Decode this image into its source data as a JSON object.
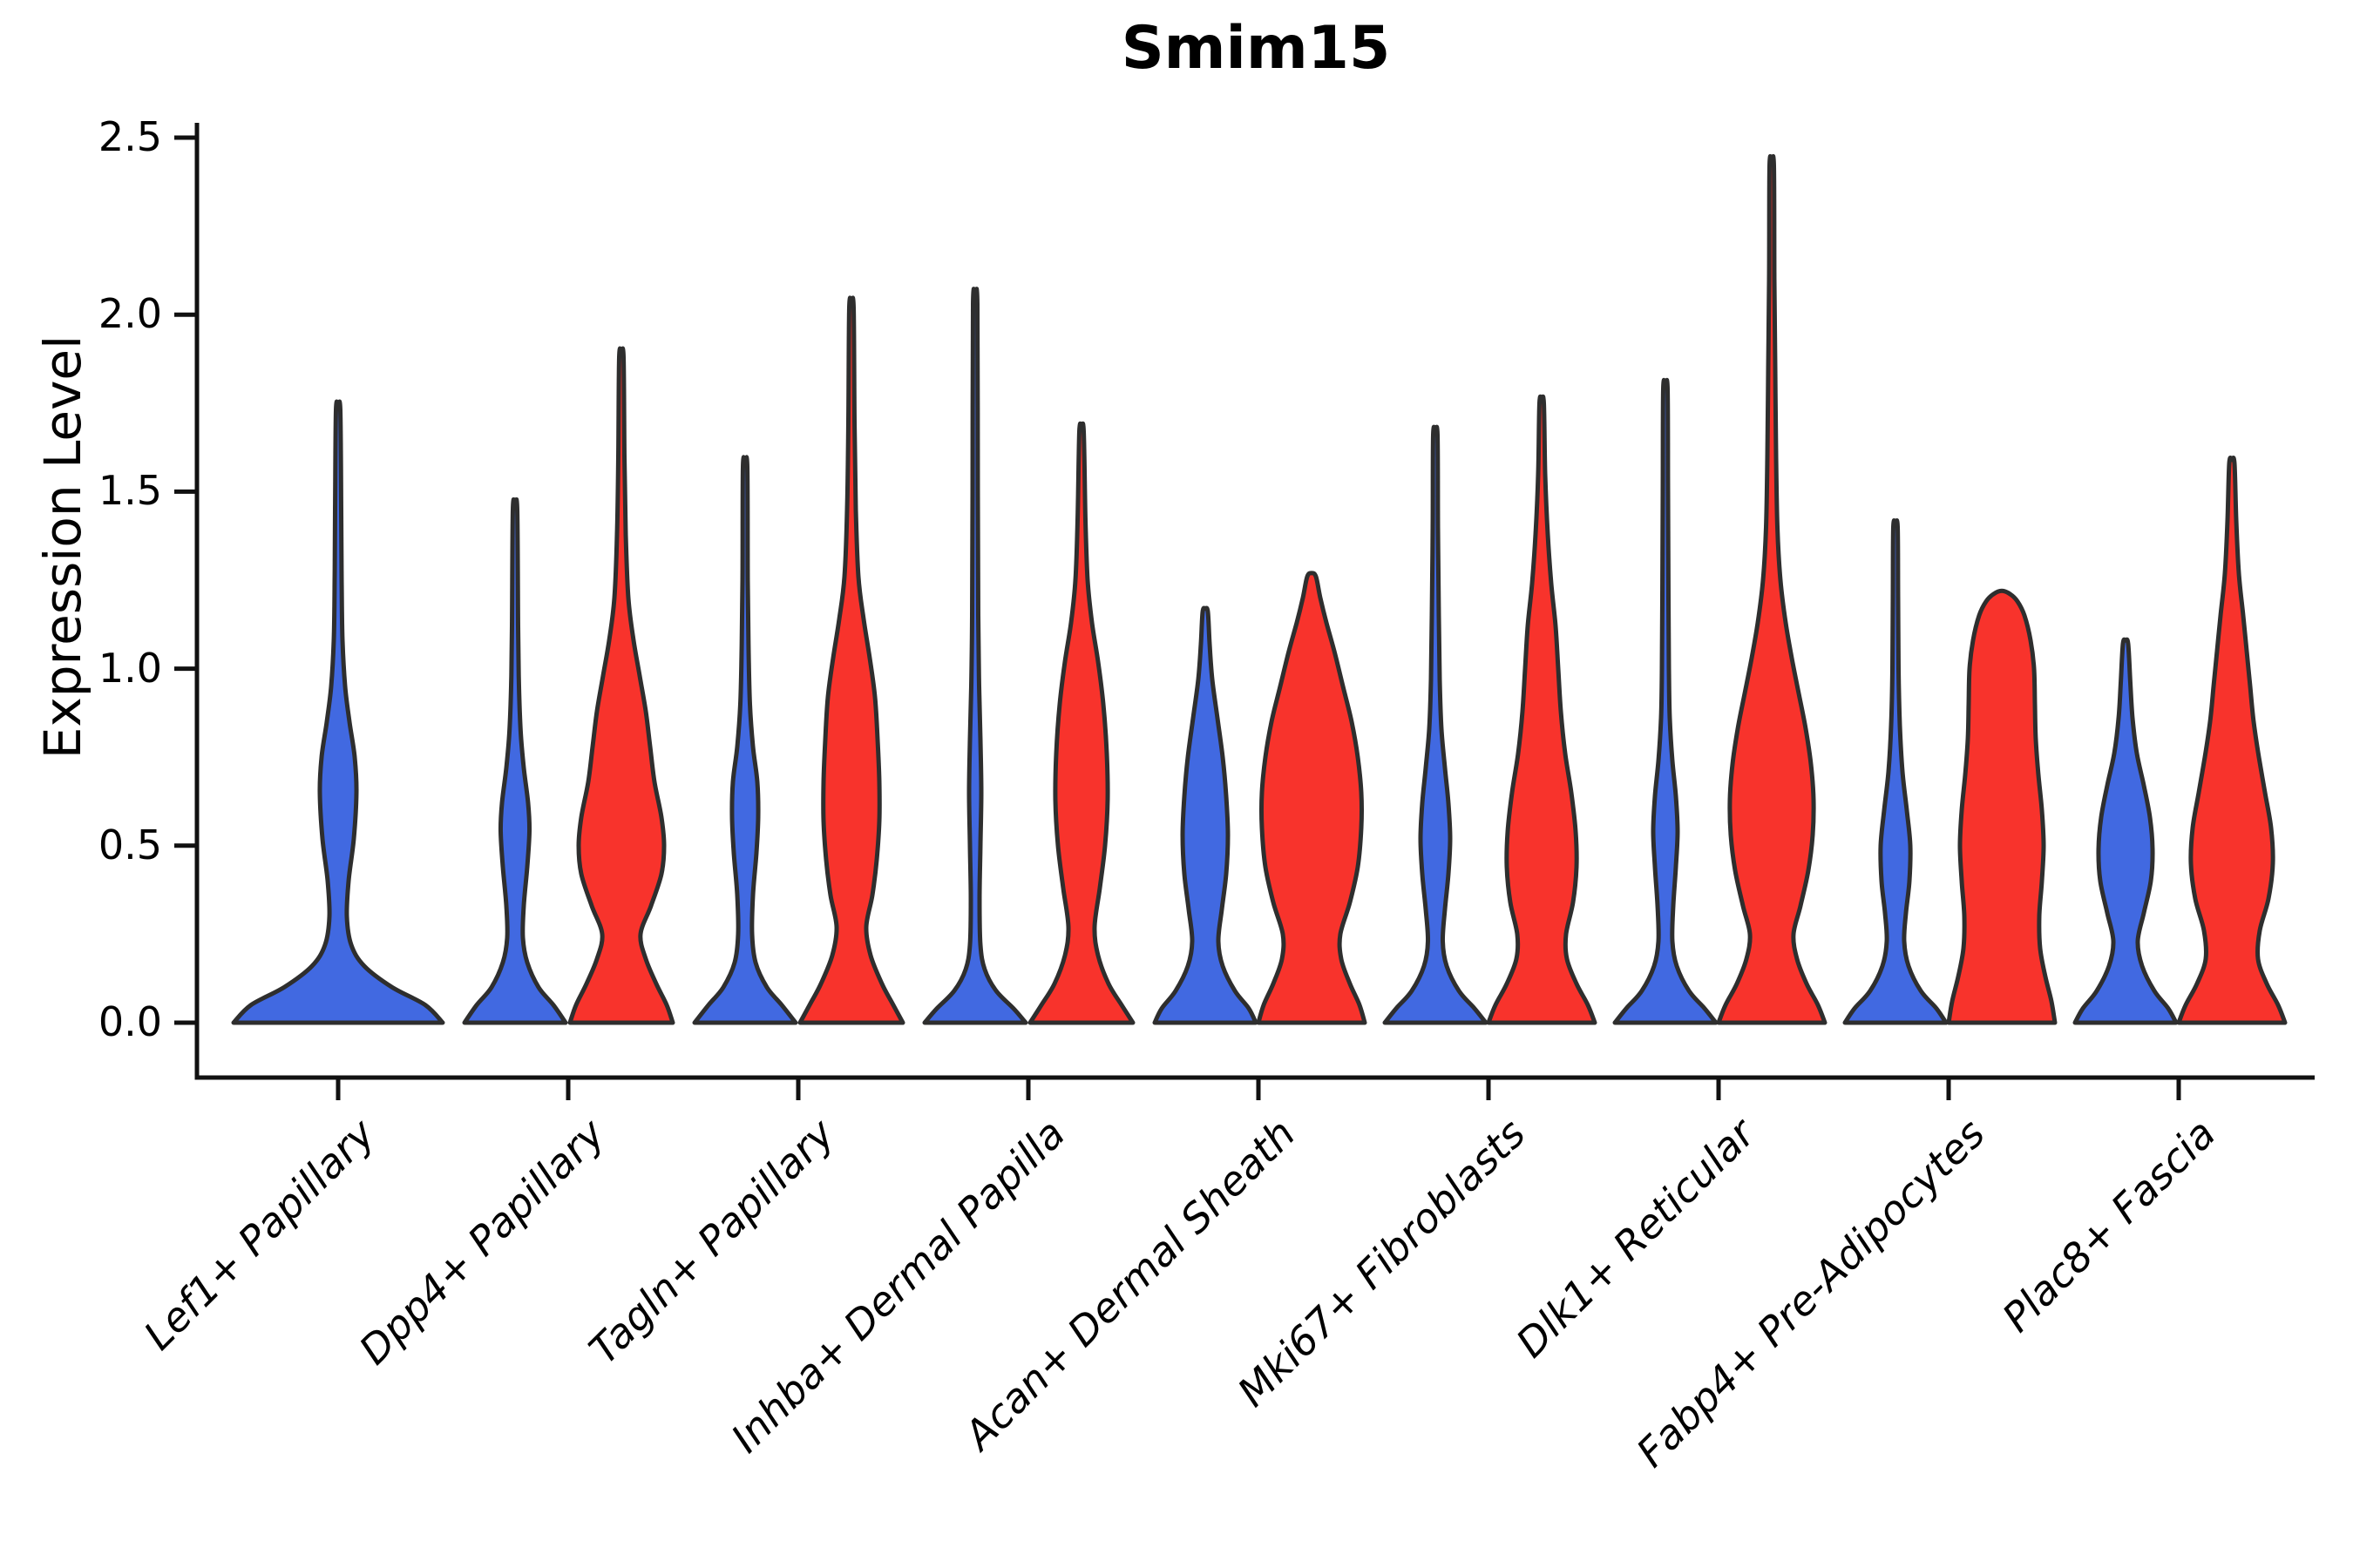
{
  "chart_data": {
    "type": "violin",
    "title": "Smim15",
    "ylabel": "Expression Level",
    "xlabel": "",
    "ylim": [
      0,
      2.5
    ],
    "grid": false,
    "legend": "none",
    "yticks": [
      0.0,
      0.5,
      1.0,
      1.5,
      2.0,
      2.5
    ],
    "ytick_labels": [
      "0.0",
      "0.5",
      "1.0",
      "1.5",
      "2.0",
      "2.5"
    ],
    "categories": [
      "Lef1+ Papillary",
      "Dpp4+ Papillary",
      "Tagln+ Papillary",
      "Inhba+ Dermal Papilla",
      "Acan+ Dermal Sheath",
      "Mki67+ Fibroblasts",
      "Dlk1+ Reticular",
      "Fabp4+ Pre-Adipocytes",
      "Plac8+ Fascia"
    ],
    "series": [
      {
        "id": "blue",
        "color": "#4169E1",
        "max_expression": [
          1.73,
          1.45,
          1.57,
          2.03,
          1.16,
          1.66,
          1.79,
          1.4,
          1.07
        ]
      },
      {
        "id": "red",
        "color": "#F8332C",
        "max_expression": [
          null,
          1.88,
          2.02,
          1.67,
          1.26,
          1.75,
          2.42,
          1.21,
          1.58
        ]
      }
    ],
    "violin_outline_color": "#2e2e2e",
    "axis_color": "#111111",
    "violins": [
      {
        "category_index": 0,
        "side": "blue",
        "dx": 0,
        "profile": [
          [
            0,
            120
          ],
          [
            0.05,
            100
          ],
          [
            0.1,
            62
          ],
          [
            0.16,
            30
          ],
          [
            0.22,
            15
          ],
          [
            0.3,
            10
          ],
          [
            0.4,
            12
          ],
          [
            0.52,
            18
          ],
          [
            0.65,
            21
          ],
          [
            0.75,
            19
          ],
          [
            0.85,
            13
          ],
          [
            0.95,
            8
          ],
          [
            1.08,
            5
          ],
          [
            1.25,
            4
          ],
          [
            1.45,
            3.5
          ],
          [
            1.73,
            2.5
          ]
        ]
      },
      {
        "category_index": 1,
        "side": "blue",
        "dx": -61,
        "profile": [
          [
            0,
            58
          ],
          [
            0.05,
            44
          ],
          [
            0.1,
            27
          ],
          [
            0.17,
            14
          ],
          [
            0.24,
            9
          ],
          [
            0.33,
            10
          ],
          [
            0.44,
            14
          ],
          [
            0.54,
            16.5
          ],
          [
            0.62,
            15
          ],
          [
            0.72,
            10
          ],
          [
            0.82,
            6.5
          ],
          [
            0.95,
            4.5
          ],
          [
            1.12,
            3.5
          ],
          [
            1.45,
            2.5
          ]
        ]
      },
      {
        "category_index": 1,
        "side": "red",
        "dx": 61,
        "profile": [
          [
            0,
            59
          ],
          [
            0.05,
            52
          ],
          [
            0.11,
            40
          ],
          [
            0.18,
            28
          ],
          [
            0.25,
            22
          ],
          [
            0.33,
            34
          ],
          [
            0.42,
            46
          ],
          [
            0.5,
            49
          ],
          [
            0.58,
            46
          ],
          [
            0.68,
            38
          ],
          [
            0.78,
            33
          ],
          [
            0.88,
            28
          ],
          [
            0.98,
            21
          ],
          [
            1.08,
            14
          ],
          [
            1.2,
            8
          ],
          [
            1.38,
            5
          ],
          [
            1.6,
            3.5
          ],
          [
            1.88,
            2.5
          ]
        ]
      },
      {
        "category_index": 2,
        "side": "blue",
        "dx": -61,
        "profile": [
          [
            0,
            58
          ],
          [
            0.05,
            42
          ],
          [
            0.1,
            25
          ],
          [
            0.17,
            12
          ],
          [
            0.25,
            8
          ],
          [
            0.36,
            9
          ],
          [
            0.48,
            13
          ],
          [
            0.58,
            15
          ],
          [
            0.68,
            14
          ],
          [
            0.78,
            9
          ],
          [
            0.9,
            5.5
          ],
          [
            1.05,
            4
          ],
          [
            1.25,
            3
          ],
          [
            1.57,
            2.5
          ]
        ]
      },
      {
        "category_index": 2,
        "side": "red",
        "dx": 61,
        "profile": [
          [
            0,
            59
          ],
          [
            0.05,
            48
          ],
          [
            0.11,
            35
          ],
          [
            0.19,
            22
          ],
          [
            0.27,
            17
          ],
          [
            0.36,
            24
          ],
          [
            0.46,
            29
          ],
          [
            0.57,
            32
          ],
          [
            0.68,
            32
          ],
          [
            0.8,
            30
          ],
          [
            0.92,
            27
          ],
          [
            1.03,
            21
          ],
          [
            1.14,
            14
          ],
          [
            1.26,
            8
          ],
          [
            1.45,
            5
          ],
          [
            1.7,
            3.5
          ],
          [
            2.02,
            2.5
          ]
        ]
      },
      {
        "category_index": 3,
        "side": "blue",
        "dx": -61,
        "profile": [
          [
            0,
            58
          ],
          [
            0.04,
            44
          ],
          [
            0.09,
            24
          ],
          [
            0.15,
            11
          ],
          [
            0.22,
            6
          ],
          [
            0.35,
            5
          ],
          [
            0.5,
            6
          ],
          [
            0.65,
            7
          ],
          [
            0.8,
            6
          ],
          [
            0.95,
            4.5
          ],
          [
            1.15,
            3.5
          ],
          [
            1.5,
            3
          ],
          [
            2.03,
            2.5
          ]
        ]
      },
      {
        "category_index": 3,
        "side": "red",
        "dx": 61,
        "profile": [
          [
            0,
            59
          ],
          [
            0.05,
            46
          ],
          [
            0.11,
            31
          ],
          [
            0.19,
            19
          ],
          [
            0.27,
            15
          ],
          [
            0.38,
            21
          ],
          [
            0.5,
            27
          ],
          [
            0.63,
            30
          ],
          [
            0.76,
            29
          ],
          [
            0.9,
            25
          ],
          [
            1.02,
            19
          ],
          [
            1.13,
            12
          ],
          [
            1.25,
            7
          ],
          [
            1.42,
            4.5
          ],
          [
            1.67,
            2.5
          ]
        ]
      },
      {
        "category_index": 4,
        "side": "blue",
        "dx": -61,
        "profile": [
          [
            0,
            58
          ],
          [
            0.04,
            50
          ],
          [
            0.09,
            34
          ],
          [
            0.16,
            20
          ],
          [
            0.23,
            15
          ],
          [
            0.32,
            19
          ],
          [
            0.42,
            24
          ],
          [
            0.53,
            26
          ],
          [
            0.64,
            24
          ],
          [
            0.75,
            20
          ],
          [
            0.86,
            14
          ],
          [
            0.97,
            8
          ],
          [
            1.07,
            5
          ],
          [
            1.16,
            3
          ]
        ]
      },
      {
        "category_index": 4,
        "side": "red",
        "dx": 61,
        "profile": [
          [
            0,
            61
          ],
          [
            0.05,
            55
          ],
          [
            0.11,
            44
          ],
          [
            0.18,
            34
          ],
          [
            0.25,
            33
          ],
          [
            0.34,
            44
          ],
          [
            0.44,
            53
          ],
          [
            0.55,
            57
          ],
          [
            0.65,
            57
          ],
          [
            0.75,
            53
          ],
          [
            0.85,
            46
          ],
          [
            0.95,
            36
          ],
          [
            1.05,
            26
          ],
          [
            1.13,
            17
          ],
          [
            1.2,
            10
          ],
          [
            1.26,
            5
          ]
        ]
      },
      {
        "category_index": 5,
        "side": "blue",
        "dx": -61,
        "profile": [
          [
            0,
            58
          ],
          [
            0.04,
            45
          ],
          [
            0.09,
            27
          ],
          [
            0.16,
            13
          ],
          [
            0.23,
            8.5
          ],
          [
            0.32,
            11
          ],
          [
            0.42,
            15
          ],
          [
            0.52,
            17
          ],
          [
            0.62,
            15
          ],
          [
            0.72,
            11
          ],
          [
            0.83,
            7
          ],
          [
            0.97,
            5
          ],
          [
            1.15,
            4
          ],
          [
            1.4,
            3
          ],
          [
            1.66,
            2.5
          ]
        ]
      },
      {
        "category_index": 5,
        "side": "red",
        "dx": 61,
        "profile": [
          [
            0,
            61
          ],
          [
            0.05,
            53
          ],
          [
            0.11,
            40
          ],
          [
            0.18,
            29
          ],
          [
            0.25,
            28
          ],
          [
            0.34,
            36
          ],
          [
            0.44,
            40
          ],
          [
            0.54,
            39
          ],
          [
            0.65,
            34
          ],
          [
            0.76,
            27
          ],
          [
            0.88,
            22
          ],
          [
            1.0,
            19
          ],
          [
            1.12,
            16
          ],
          [
            1.24,
            11
          ],
          [
            1.38,
            7
          ],
          [
            1.55,
            4
          ],
          [
            1.75,
            2.5
          ]
        ]
      },
      {
        "category_index": 6,
        "side": "blue",
        "dx": -61,
        "profile": [
          [
            0,
            58
          ],
          [
            0.04,
            45
          ],
          [
            0.09,
            27
          ],
          [
            0.16,
            13
          ],
          [
            0.23,
            8
          ],
          [
            0.33,
            9
          ],
          [
            0.44,
            12
          ],
          [
            0.54,
            14
          ],
          [
            0.64,
            12
          ],
          [
            0.74,
            8
          ],
          [
            0.86,
            5
          ],
          [
            1.0,
            4
          ],
          [
            1.2,
            3.5
          ],
          [
            1.5,
            3
          ],
          [
            1.79,
            2.5
          ]
        ]
      },
      {
        "category_index": 6,
        "side": "red",
        "dx": 61,
        "profile": [
          [
            0,
            61
          ],
          [
            0.05,
            53
          ],
          [
            0.11,
            40
          ],
          [
            0.18,
            29
          ],
          [
            0.25,
            25
          ],
          [
            0.33,
            33
          ],
          [
            0.43,
            42
          ],
          [
            0.53,
            47
          ],
          [
            0.63,
            48
          ],
          [
            0.73,
            45
          ],
          [
            0.83,
            39
          ],
          [
            0.93,
            31
          ],
          [
            1.03,
            23
          ],
          [
            1.13,
            16
          ],
          [
            1.25,
            10
          ],
          [
            1.4,
            6.5
          ],
          [
            1.6,
            5
          ],
          [
            1.85,
            4
          ],
          [
            2.1,
            3
          ],
          [
            2.42,
            2.5
          ]
        ]
      },
      {
        "category_index": 7,
        "side": "blue",
        "dx": -61,
        "profile": [
          [
            0,
            58
          ],
          [
            0.04,
            47
          ],
          [
            0.09,
            29
          ],
          [
            0.16,
            15
          ],
          [
            0.23,
            10
          ],
          [
            0.31,
            12
          ],
          [
            0.4,
            16
          ],
          [
            0.5,
            17
          ],
          [
            0.6,
            13
          ],
          [
            0.71,
            8
          ],
          [
            0.84,
            5
          ],
          [
            1.0,
            3.5
          ],
          [
            1.2,
            3
          ],
          [
            1.4,
            2.5
          ]
        ]
      },
      {
        "category_index": 7,
        "side": "red",
        "dx": 61,
        "profile": [
          [
            0,
            61
          ],
          [
            0.06,
            57
          ],
          [
            0.13,
            50
          ],
          [
            0.21,
            44
          ],
          [
            0.3,
            43
          ],
          [
            0.4,
            46
          ],
          [
            0.5,
            48
          ],
          [
            0.6,
            46
          ],
          [
            0.7,
            42
          ],
          [
            0.8,
            39
          ],
          [
            0.9,
            38
          ],
          [
            1.0,
            37
          ],
          [
            1.08,
            33
          ],
          [
            1.15,
            26
          ],
          [
            1.19,
            18
          ],
          [
            1.21,
            10
          ]
        ]
      },
      {
        "category_index": 8,
        "side": "blue",
        "dx": -61,
        "profile": [
          [
            0,
            58
          ],
          [
            0.04,
            49
          ],
          [
            0.09,
            33
          ],
          [
            0.16,
            19
          ],
          [
            0.23,
            14
          ],
          [
            0.31,
            21
          ],
          [
            0.4,
            29
          ],
          [
            0.49,
            31
          ],
          [
            0.58,
            28
          ],
          [
            0.67,
            21
          ],
          [
            0.76,
            13
          ],
          [
            0.86,
            8
          ],
          [
            0.96,
            5.5
          ],
          [
            1.07,
            3
          ]
        ]
      },
      {
        "category_index": 8,
        "side": "red",
        "dx": 61,
        "profile": [
          [
            0,
            61
          ],
          [
            0.05,
            53
          ],
          [
            0.11,
            40
          ],
          [
            0.18,
            30
          ],
          [
            0.26,
            32
          ],
          [
            0.35,
            42
          ],
          [
            0.45,
            47
          ],
          [
            0.55,
            45
          ],
          [
            0.65,
            38
          ],
          [
            0.75,
            31
          ],
          [
            0.85,
            25
          ],
          [
            0.95,
            21
          ],
          [
            1.05,
            17
          ],
          [
            1.15,
            13
          ],
          [
            1.27,
            8
          ],
          [
            1.42,
            5
          ],
          [
            1.58,
            3
          ]
        ]
      }
    ]
  }
}
